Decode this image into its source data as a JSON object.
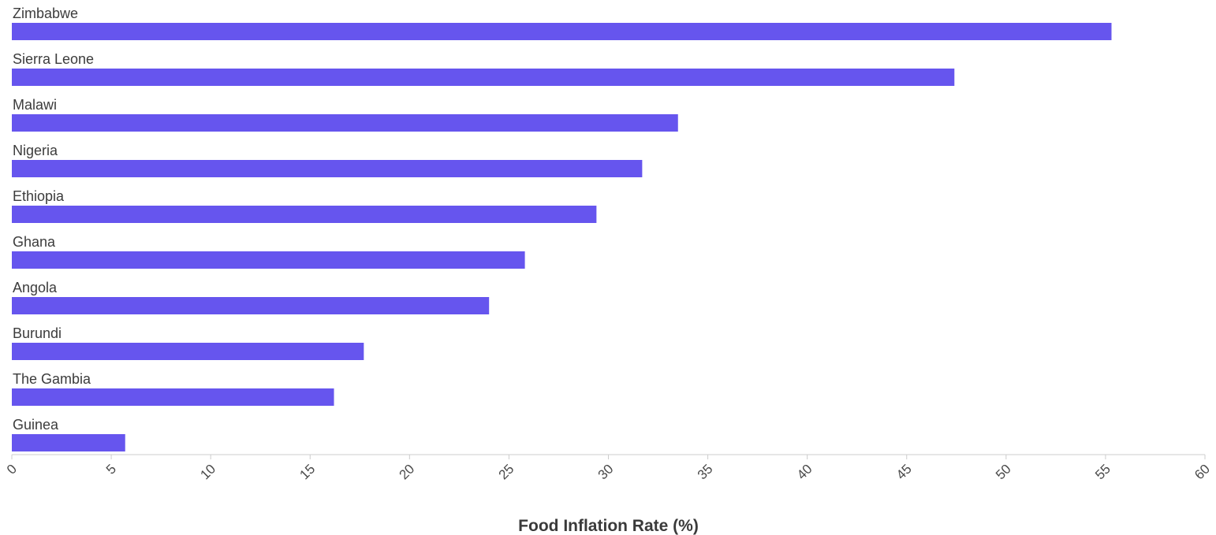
{
  "chart_data": {
    "type": "bar",
    "orientation": "horizontal",
    "categories": [
      "Zimbabwe",
      "Sierra Leone",
      "Malawi",
      "Nigeria",
      "Ethiopia",
      "Ghana",
      "Angola",
      "Burundi",
      "The Gambia",
      "Guinea"
    ],
    "values": [
      55.3,
      47.4,
      33.5,
      31.7,
      29.4,
      25.8,
      24.0,
      17.7,
      16.2,
      5.7
    ],
    "title": "",
    "xlabel": "Food Inflation Rate (%)",
    "ylabel": "",
    "xlim": [
      0,
      60
    ],
    "xticks": [
      "0",
      "5",
      "10",
      "15",
      "20",
      "25",
      "30",
      "35",
      "40",
      "45",
      "50",
      "55",
      "60"
    ],
    "grid": false,
    "legend": "none",
    "bar_color": "#6655ee",
    "axis_color": "#cccccc"
  }
}
